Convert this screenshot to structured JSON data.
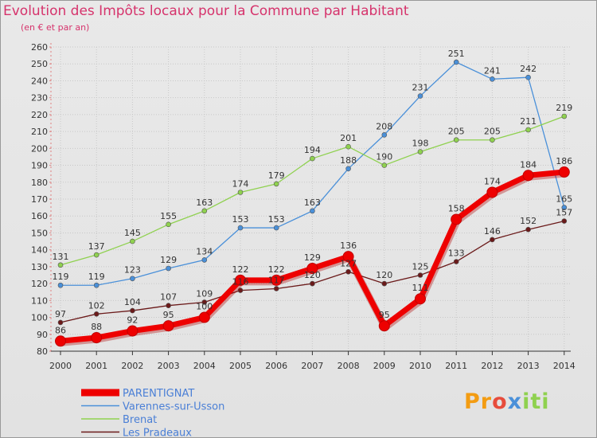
{
  "header": {
    "title": "Evolution des Impôts locaux pour la Commune par Habitant",
    "subtitle": "(en € et par an)"
  },
  "logo": {
    "p": "Pr",
    "o": "o",
    "x": "x",
    "i": "iti"
  },
  "chart_data": {
    "type": "line",
    "title": "Evolution des Impôts locaux pour la Commune par Habitant",
    "subtitle": "(en € et par an)",
    "xlabel": "",
    "ylabel": "",
    "ylim": [
      80,
      260
    ],
    "y_step": 10,
    "x": [
      "2000",
      "2001",
      "2002",
      "2003",
      "2004",
      "2005",
      "2006",
      "2007",
      "2008",
      "2009",
      "2010",
      "2011",
      "2012",
      "2013",
      "2014"
    ],
    "series": [
      {
        "name": "Varennes-sur-Usson",
        "color": "#4a90d9",
        "values": [
          119,
          119,
          123,
          129,
          134,
          153,
          153,
          163,
          188,
          208,
          231,
          251,
          241,
          242,
          165
        ]
      },
      {
        "name": "Brenat",
        "color": "#8fd14f",
        "values": [
          131,
          137,
          145,
          155,
          163,
          174,
          179,
          194,
          201,
          190,
          198,
          205,
          205,
          211,
          219
        ]
      },
      {
        "name": "Les Pradeaux",
        "color": "#6b1a1a",
        "values": [
          97,
          102,
          104,
          107,
          109,
          116,
          117,
          120,
          127,
          120,
          125,
          133,
          146,
          152,
          157
        ]
      },
      {
        "name": "PARENTIGNAT",
        "color": "#ee0000",
        "values": [
          86,
          88,
          92,
          95,
          100,
          122,
          122,
          129,
          136,
          95,
          111,
          158,
          174,
          184,
          186
        ]
      }
    ],
    "legend_order": [
      "PARENTIGNAT",
      "Varennes-sur-Usson",
      "Brenat",
      "Les Pradeaux"
    ],
    "legend_position": "bottom-left",
    "grid": true
  }
}
